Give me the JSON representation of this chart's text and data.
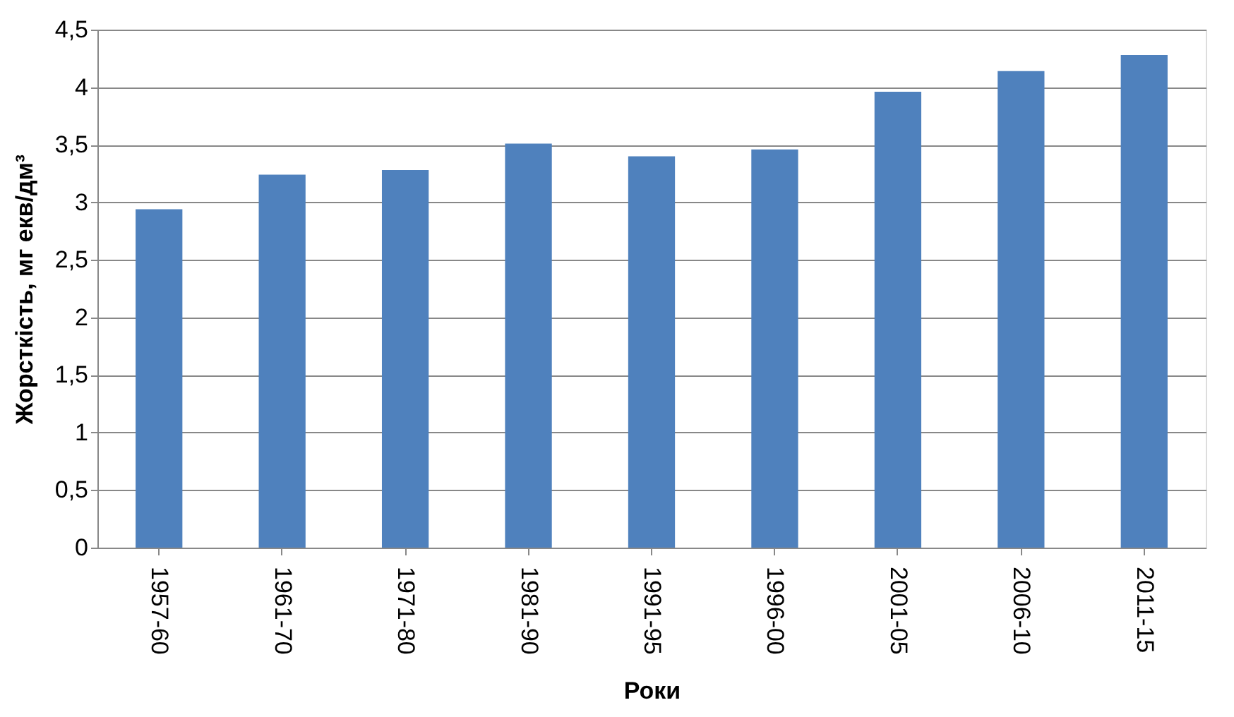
{
  "chart_data": {
    "type": "bar",
    "xlabel": "Роки",
    "ylabel": "Жорсткість, мг екв/дм³",
    "categories": [
      "1957-60",
      "1961-70",
      "1971-80",
      "1981-90",
      "1991-95",
      "1996-00",
      "2001-05",
      "2006-10",
      "2011-15"
    ],
    "values": [
      2.94,
      3.24,
      3.28,
      3.51,
      3.4,
      3.46,
      3.96,
      4.14,
      4.28
    ],
    "color": "#4f81bd",
    "ylim": [
      0,
      4.5
    ],
    "yticks": [
      0,
      {
        "value": 0.5,
        "label": "0,5"
      },
      1,
      {
        "value": 1.5,
        "label": "1,5"
      },
      2,
      {
        "value": 2.5,
        "label": "2,5"
      },
      3,
      {
        "value": 3.5,
        "label": "3,5"
      },
      4,
      {
        "value": 4.5,
        "label": "4,5"
      }
    ],
    "grid": "y"
  }
}
